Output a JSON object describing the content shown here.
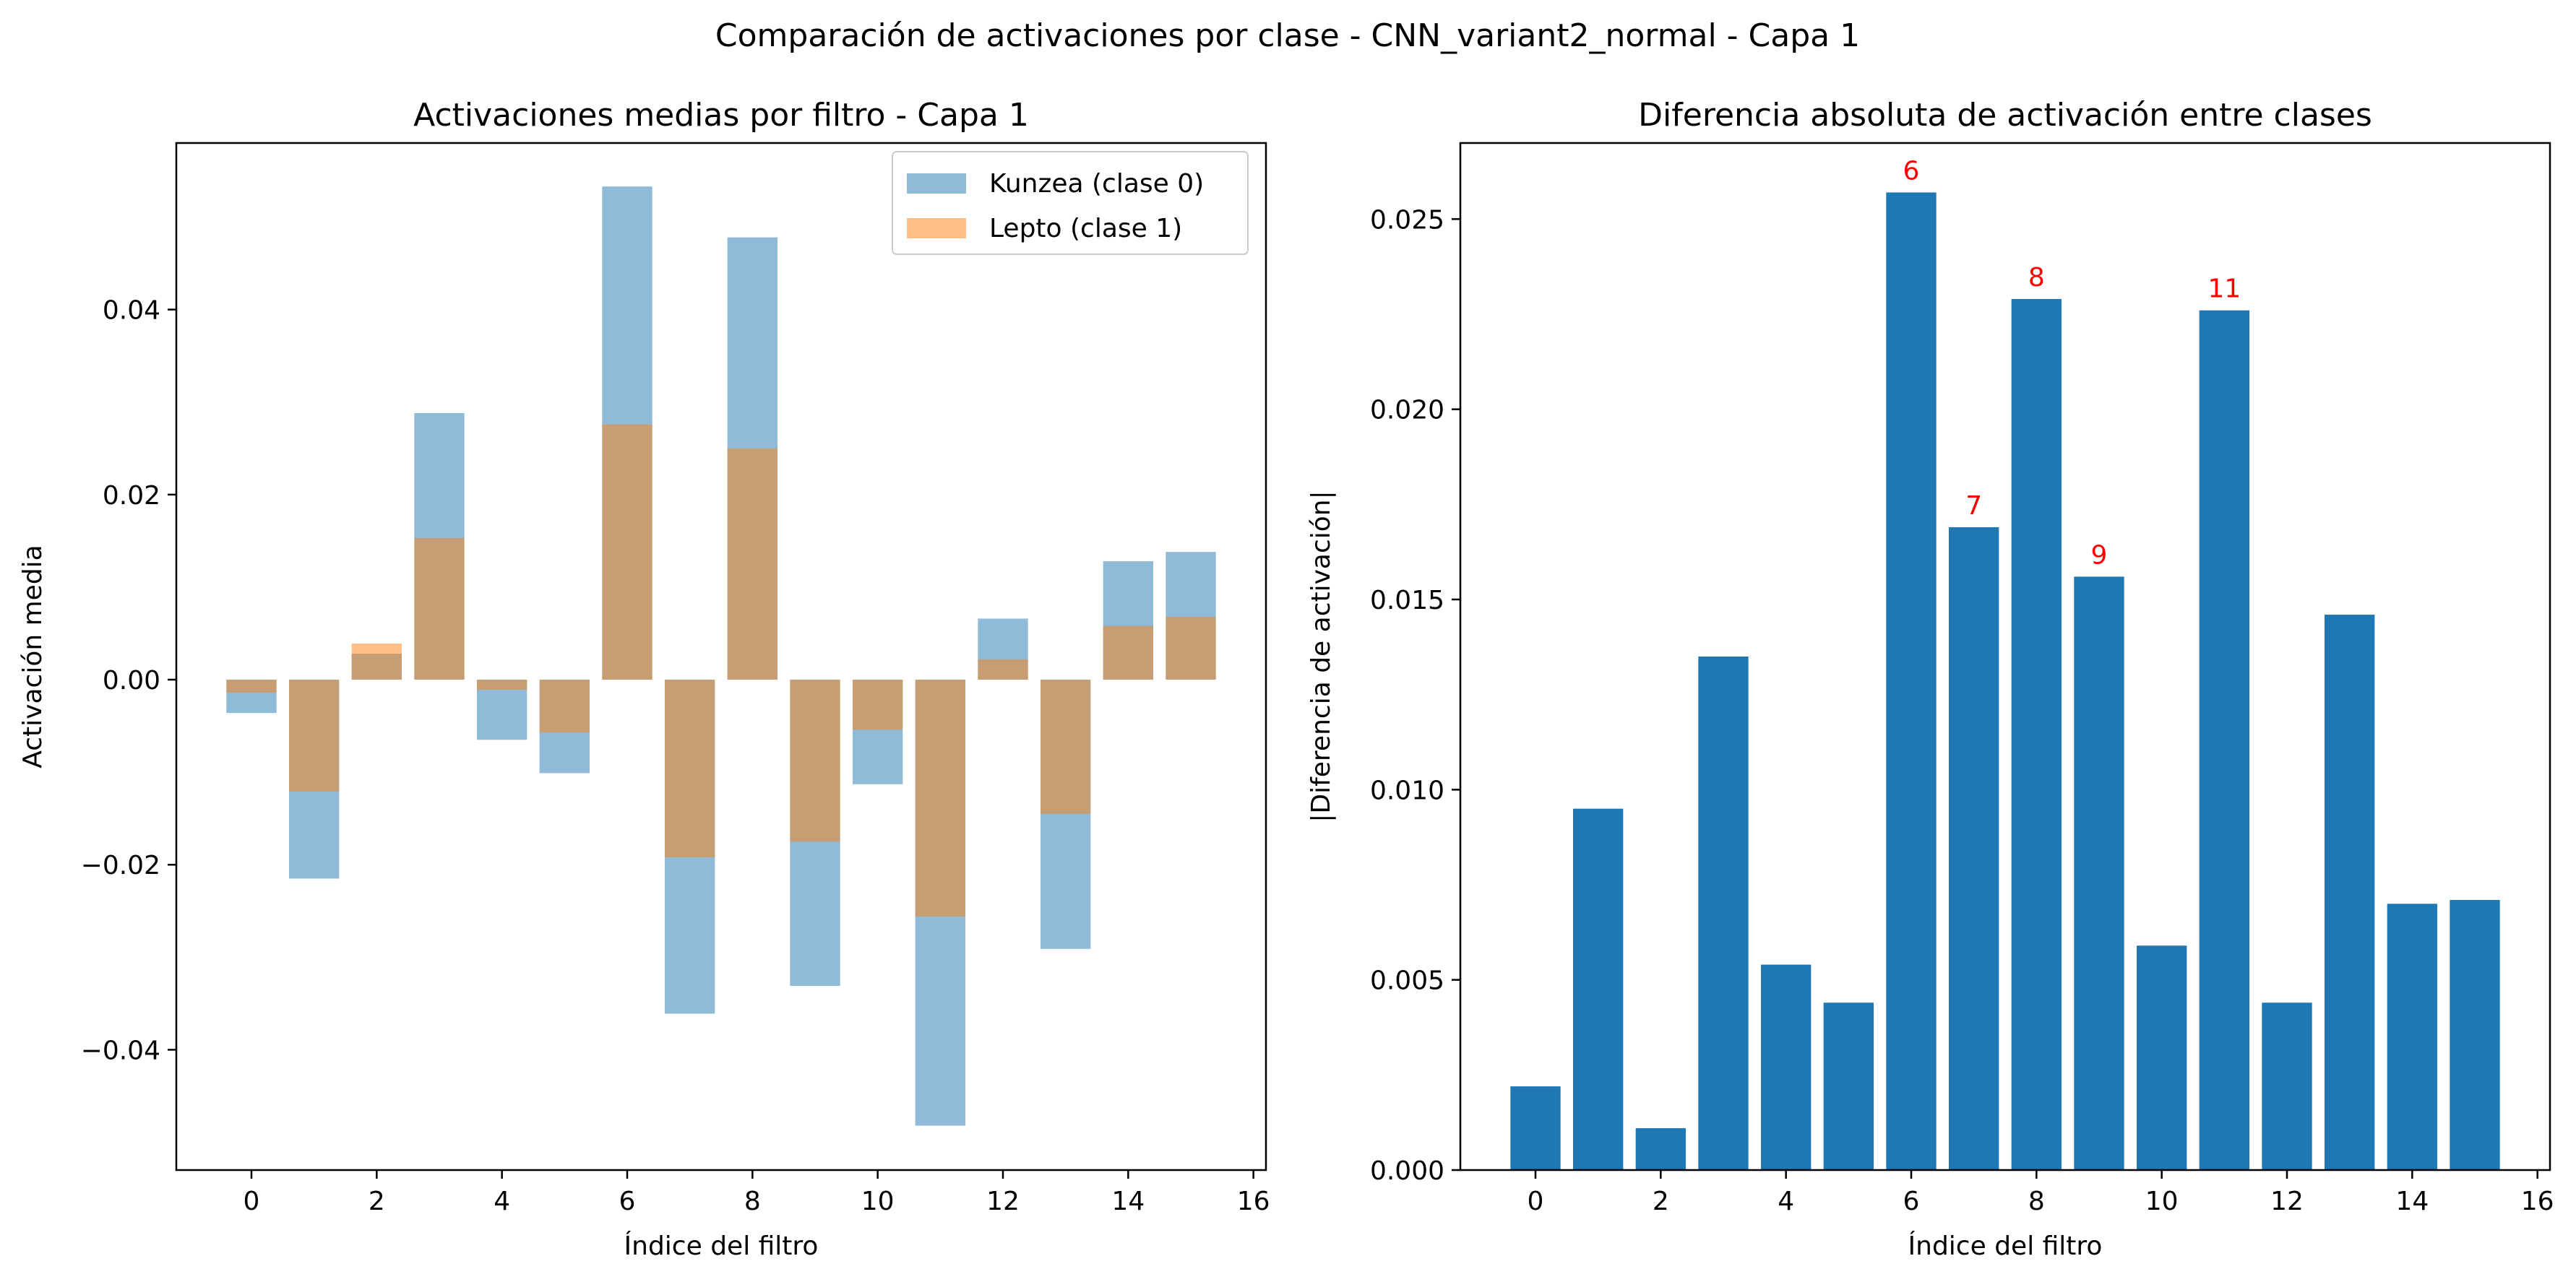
{
  "suptitle": "Comparación de activaciones por clase - CNN_variant2_normal - Capa 1",
  "chart_data": [
    {
      "type": "bar",
      "title": "Activaciones medias por filtro - Capa 1",
      "xlabel": "Índice del filtro",
      "ylabel": "Activación media",
      "xlim": [
        -1.2,
        16.2
      ],
      "ylim": [
        -0.053,
        0.058
      ],
      "xticks": [
        0,
        2,
        4,
        6,
        8,
        10,
        12,
        14,
        16
      ],
      "xtick_labels": [
        "0",
        "2",
        "4",
        "6",
        "8",
        "10",
        "12",
        "14",
        "16"
      ],
      "yticks": [
        -0.04,
        -0.02,
        0.0,
        0.02,
        0.04
      ],
      "ytick_labels": [
        "−0.04",
        "−0.02",
        "0.00",
        "0.02",
        "0.04"
      ],
      "categories": [
        0,
        1,
        2,
        3,
        4,
        5,
        6,
        7,
        8,
        9,
        10,
        11,
        12,
        13,
        14,
        15
      ],
      "legend": "top-right",
      "grid": false,
      "series": [
        {
          "name": "Kunzea (clase 0)",
          "color": "#1f77b4",
          "alpha": 0.5,
          "values": [
            -0.0036,
            -0.0215,
            0.0028,
            0.0288,
            -0.0065,
            -0.0101,
            0.0533,
            -0.0361,
            0.0478,
            -0.0331,
            -0.0113,
            -0.0482,
            0.0066,
            -0.0291,
            0.0128,
            0.0138
          ]
        },
        {
          "name": "Lepto (clase 1)",
          "color": "#ff7f0e",
          "alpha": 0.5,
          "values": [
            -0.0014,
            -0.0121,
            0.0039,
            0.0153,
            -0.0011,
            -0.0057,
            0.0276,
            -0.0192,
            0.025,
            -0.0175,
            -0.0054,
            -0.0256,
            0.0022,
            -0.0145,
            0.0058,
            0.0068
          ]
        }
      ]
    },
    {
      "type": "bar",
      "title": "Diferencia absoluta de activación entre clases",
      "xlabel": "Índice del filtro",
      "ylabel": "|Diferencia de activación|",
      "xlim": [
        -1.2,
        16.2
      ],
      "ylim": [
        0,
        0.027
      ],
      "xticks": [
        0,
        2,
        4,
        6,
        8,
        10,
        12,
        14,
        16
      ],
      "xtick_labels": [
        "0",
        "2",
        "4",
        "6",
        "8",
        "10",
        "12",
        "14",
        "16"
      ],
      "yticks": [
        0.0,
        0.005,
        0.01,
        0.015,
        0.02,
        0.025
      ],
      "ytick_labels": [
        "0.000",
        "0.005",
        "0.010",
        "0.015",
        "0.020",
        "0.025"
      ],
      "categories": [
        0,
        1,
        2,
        3,
        4,
        5,
        6,
        7,
        8,
        9,
        10,
        11,
        12,
        13,
        14,
        15
      ],
      "grid": false,
      "color": "#1f77b4",
      "label_color": "#ff0000",
      "values": [
        0.0022,
        0.0095,
        0.0011,
        0.0135,
        0.0054,
        0.0044,
        0.0257,
        0.0169,
        0.0229,
        0.0156,
        0.0059,
        0.0226,
        0.0044,
        0.0146,
        0.007,
        0.0071
      ],
      "annotations": [
        {
          "index": 6,
          "text": "6"
        },
        {
          "index": 7,
          "text": "7"
        },
        {
          "index": 8,
          "text": "8"
        },
        {
          "index": 9,
          "text": "9"
        },
        {
          "index": 11,
          "text": "11"
        }
      ]
    }
  ]
}
